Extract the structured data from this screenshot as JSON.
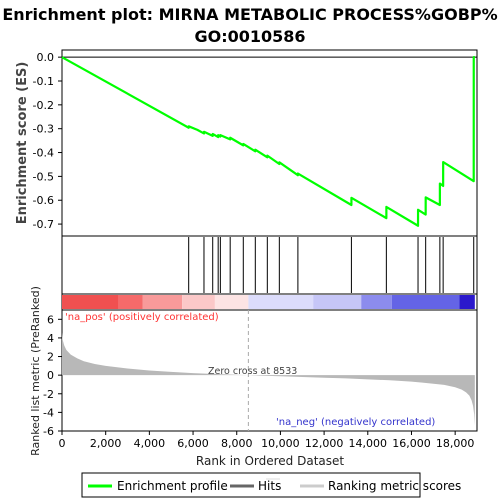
{
  "title": "Enrichment plot: MIRNA METABOLIC PROCESS%GOBP%GO:0010586",
  "title_lines": [
    "Enrichment plot: MIRNA METABOLIC PROCESS%GOBP%",
    "GO:0010586"
  ],
  "colors": {
    "profile": "#00ff00",
    "hits": "#000000",
    "metric_fill": "#b8b8b8",
    "pos_label": "#ff3333",
    "neg_label": "#3333cc",
    "zero_cross_line": "#aaaaaa"
  },
  "chart_data": [
    {
      "type": "line",
      "title": "Enrichment plot: MIRNA METABOLIC PROCESS%GOBP%GO:0010586",
      "ylabel": "Enrichment score (ES)",
      "xlim": [
        0,
        19000
      ],
      "ylim": [
        -0.75,
        0.03
      ],
      "yticks": [
        0.0,
        -0.1,
        -0.2,
        -0.3,
        -0.4,
        -0.5,
        -0.6,
        -0.7
      ],
      "ytick_labels": [
        "0.0",
        "-0.1",
        "-0.2",
        "-0.3",
        "-0.4",
        "-0.5",
        "-0.6",
        "-0.7"
      ],
      "grid": false,
      "series": [
        {
          "name": "Enrichment profile",
          "x": [
            0,
            5800,
            5801,
            6200,
            6500,
            6501,
            6900,
            6901,
            7150,
            7151,
            7250,
            7251,
            7700,
            7701,
            8300,
            8301,
            8850,
            8851,
            9400,
            9401,
            9950,
            9951,
            10800,
            10801,
            13250,
            13251,
            14850,
            14851,
            16300,
            16301,
            16650,
            16651,
            17300,
            17301,
            17450,
            17451,
            18850,
            18851,
            18900
          ],
          "y": [
            0.0,
            -0.296,
            -0.29,
            -0.305,
            -0.32,
            -0.313,
            -0.33,
            -0.322,
            -0.335,
            -0.327,
            -0.333,
            -0.327,
            -0.345,
            -0.338,
            -0.37,
            -0.364,
            -0.395,
            -0.388,
            -0.42,
            -0.413,
            -0.448,
            -0.441,
            -0.495,
            -0.488,
            -0.62,
            -0.59,
            -0.675,
            -0.628,
            -0.707,
            -0.64,
            -0.66,
            -0.588,
            -0.62,
            -0.53,
            -0.54,
            -0.44,
            -0.52,
            0.0,
            0.0
          ]
        }
      ]
    },
    {
      "type": "scatter",
      "title": "",
      "series": [
        {
          "name": "Hits",
          "x": [
            5800,
            6500,
            6900,
            7150,
            7250,
            7700,
            8300,
            8850,
            9400,
            9950,
            10800,
            13250,
            14850,
            16300,
            16650,
            17300,
            17450,
            18850
          ]
        }
      ]
    },
    {
      "type": "area",
      "title": "",
      "xlabel": "Rank in Ordered Dataset",
      "ylabel": "Ranked list metric (PreRanked)",
      "xlim": [
        0,
        19000
      ],
      "ylim": [
        -6,
        7
      ],
      "xticks": [
        0,
        2000,
        4000,
        6000,
        8000,
        10000,
        12000,
        14000,
        16000,
        18000
      ],
      "xtick_labels": [
        "0",
        "2,000",
        "4,000",
        "6,000",
        "8,000",
        "10,000",
        "12,000",
        "14,000",
        "16,000",
        "18,000"
      ],
      "yticks": [
        6,
        4,
        2,
        0,
        -2,
        -4,
        -6
      ],
      "ytick_labels": [
        "6",
        "4",
        "2",
        "0",
        "-2",
        "-4",
        "-6"
      ],
      "series": [
        {
          "name": "Ranking metric scores",
          "x": [
            0,
            30,
            100,
            200,
            400,
            700,
            1000,
            1500,
            2000,
            3000,
            4000,
            5000,
            6000,
            7000,
            8000,
            8533,
            9000,
            10000,
            11000,
            12000,
            13000,
            14000,
            15000,
            16000,
            16500,
            17000,
            17500,
            18000,
            18300,
            18500,
            18650,
            18750,
            18820,
            18870,
            18900
          ],
          "y": [
            4.6,
            3.8,
            3.2,
            2.7,
            2.2,
            1.8,
            1.5,
            1.2,
            1.0,
            0.72,
            0.5,
            0.35,
            0.22,
            0.13,
            0.05,
            0.0,
            -0.05,
            -0.12,
            -0.2,
            -0.28,
            -0.35,
            -0.45,
            -0.55,
            -0.7,
            -0.8,
            -0.92,
            -1.05,
            -1.3,
            -1.55,
            -1.85,
            -2.2,
            -2.7,
            -3.3,
            -4.2,
            -5.4
          ]
        }
      ]
    }
  ],
  "labels": {
    "es_ylabel": "Enrichment score (ES)",
    "metric_ylabel": "Ranked list metric (PreRanked)",
    "xlabel": "Rank in Ordered Dataset",
    "na_pos": "'na_pos' (positively correlated)",
    "na_neg": "'na_neg' (negatively correlated)",
    "zero_cross": "Zero cross at 8533"
  },
  "zero_cross_rank": 8533,
  "heatmap_bar": {
    "segments": [
      {
        "from": 0,
        "to": 2600,
        "color": "#f05050"
      },
      {
        "from": 2600,
        "to": 3700,
        "color": "#f56a6a"
      },
      {
        "from": 3700,
        "to": 5500,
        "color": "#f89a9a"
      },
      {
        "from": 5500,
        "to": 7000,
        "color": "#fbc8c8"
      },
      {
        "from": 7000,
        "to": 8533,
        "color": "#fde4e4"
      },
      {
        "from": 8533,
        "to": 11500,
        "color": "#dcdcfb"
      },
      {
        "from": 11500,
        "to": 13700,
        "color": "#c6c6f7"
      },
      {
        "from": 13700,
        "to": 15100,
        "color": "#8c8cee"
      },
      {
        "from": 15100,
        "to": 18200,
        "color": "#6464e6"
      },
      {
        "from": 18200,
        "to": 18900,
        "color": "#2b19cc"
      }
    ]
  },
  "legend": {
    "items": [
      {
        "label": "Enrichment profile",
        "color": "#00ff00"
      },
      {
        "label": "Hits",
        "color": "#000000"
      },
      {
        "label": "Ranking metric scores",
        "color": "#cccccc"
      }
    ]
  }
}
